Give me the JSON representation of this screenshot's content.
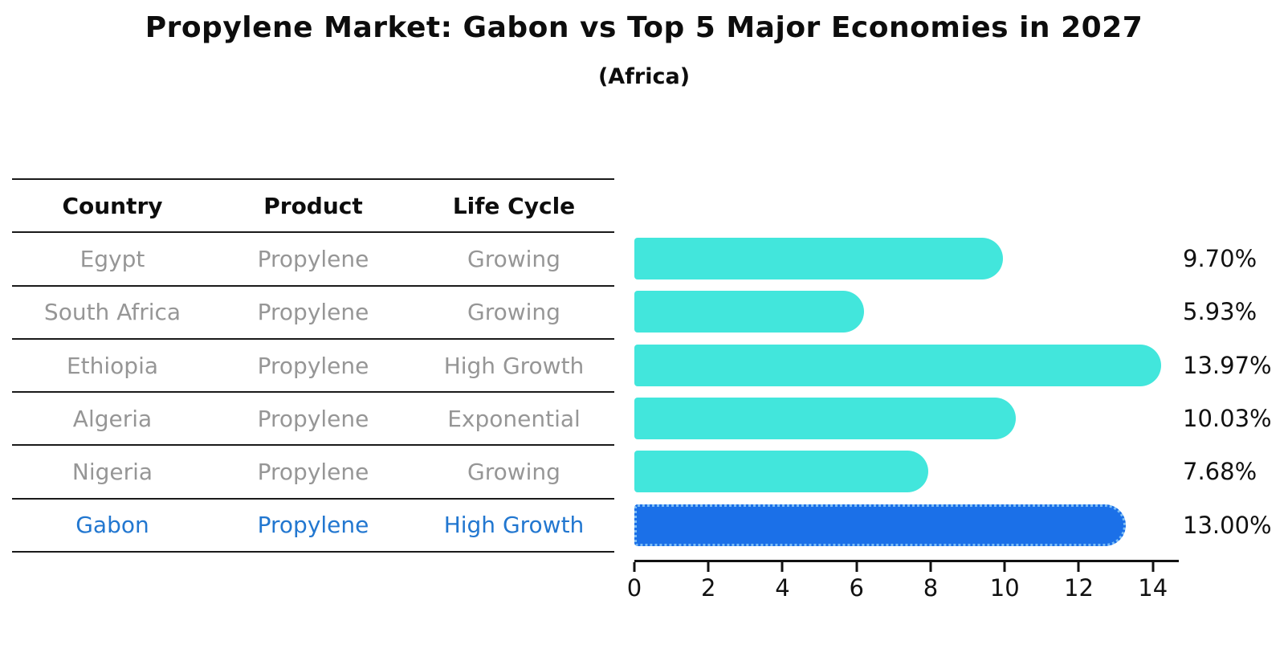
{
  "header": {
    "title": "Propylene Market: Gabon vs Top 5 Major Economies in 2027",
    "subtitle": "(Africa)"
  },
  "table": {
    "columns": [
      "Country",
      "Product",
      "Life Cycle"
    ],
    "rows": [
      {
        "country": "Egypt",
        "product": "Propylene",
        "life_cycle": "Growing",
        "highlight": false
      },
      {
        "country": "South Africa",
        "product": "Propylene",
        "life_cycle": "Growing",
        "highlight": false
      },
      {
        "country": "Ethiopia",
        "product": "Propylene",
        "life_cycle": "High Growth",
        "highlight": false
      },
      {
        "country": "Algeria",
        "product": "Propylene",
        "life_cycle": "Exponential",
        "highlight": false
      },
      {
        "country": "Nigeria",
        "product": "Propylene",
        "life_cycle": "Growing",
        "highlight": false
      },
      {
        "country": "Gabon",
        "product": "Propylene",
        "life_cycle": "High Growth",
        "highlight": true
      }
    ]
  },
  "chart_data": {
    "type": "bar",
    "orientation": "horizontal",
    "title": "Propylene Market: Gabon vs Top 5 Major Economies in 2027 (Africa)",
    "xlabel": "",
    "ylabel": "",
    "categories": [
      "Egypt",
      "South Africa",
      "Ethiopia",
      "Algeria",
      "Nigeria",
      "Gabon"
    ],
    "values": [
      9.7,
      5.93,
      13.97,
      10.03,
      7.68,
      13.0
    ],
    "value_labels": [
      "9.70%",
      "5.93%",
      "13.97%",
      "10.03%",
      "7.68%",
      "13.00%"
    ],
    "xlim": [
      0,
      14.7
    ],
    "x_ticks": [
      0,
      2,
      4,
      6,
      8,
      10,
      12,
      14
    ],
    "grid": false,
    "legend": false,
    "highlight_index": 5,
    "bar_color": "#42e6dc",
    "highlight_bar_color": "#1b70e8",
    "highlight_edge_color": "#7dbdf5",
    "highlight_text_color": "#2277d0"
  }
}
